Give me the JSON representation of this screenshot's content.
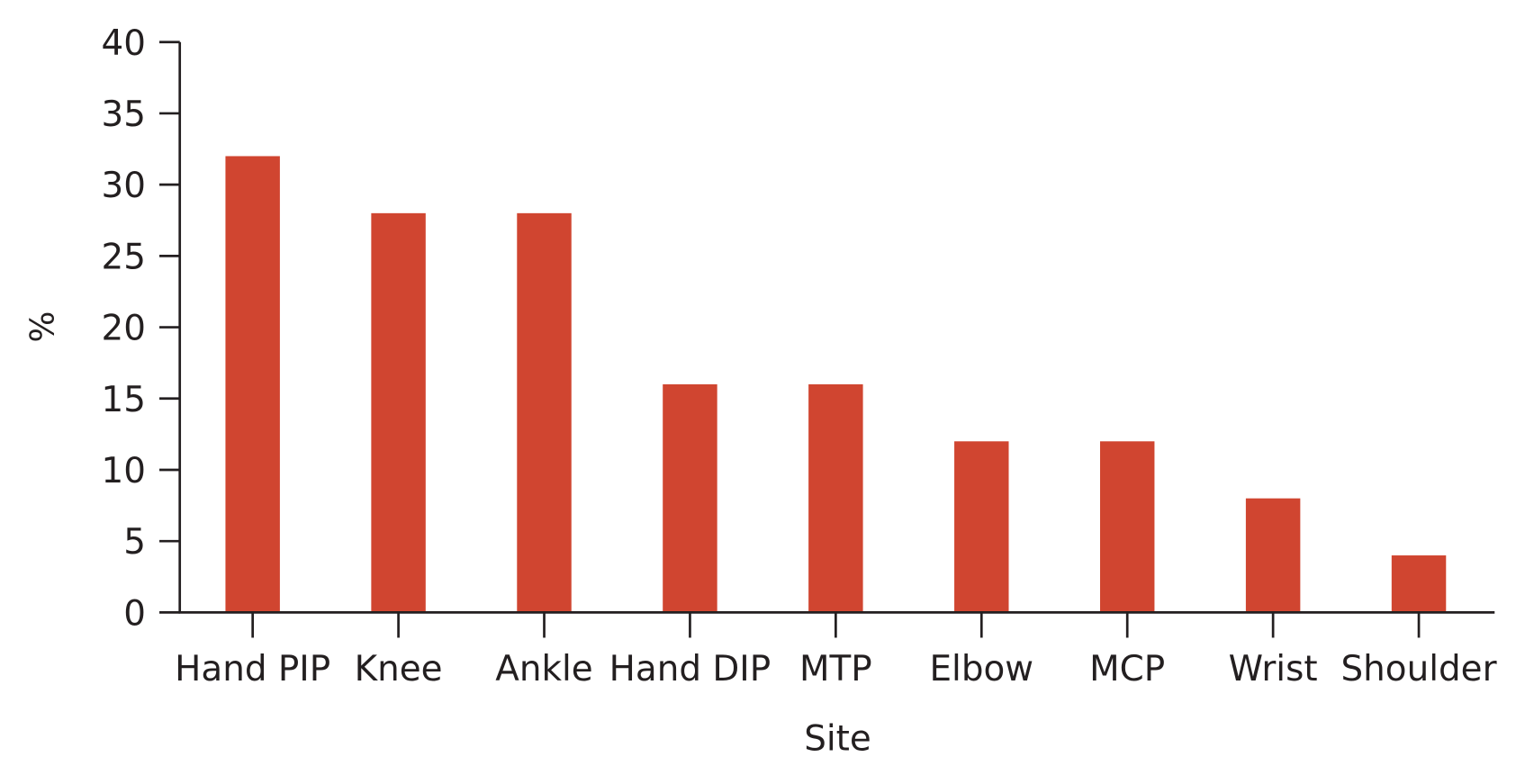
{
  "chart_data": {
    "type": "bar",
    "title": "",
    "xlabel": "Site",
    "ylabel": "%",
    "categories": [
      "Hand PIP",
      "Knee",
      "Ankle",
      "Hand DIP",
      "MTP",
      "Elbow",
      "MCP",
      "Wrist",
      "Shoulder"
    ],
    "values": [
      32,
      28,
      28,
      16,
      16,
      12,
      12,
      8,
      4
    ],
    "ylim": [
      0,
      40
    ],
    "yticks": [
      0,
      5,
      10,
      15,
      20,
      25,
      30,
      35,
      40
    ],
    "grid": false,
    "legend": "none",
    "bar_color": "#d04530"
  }
}
